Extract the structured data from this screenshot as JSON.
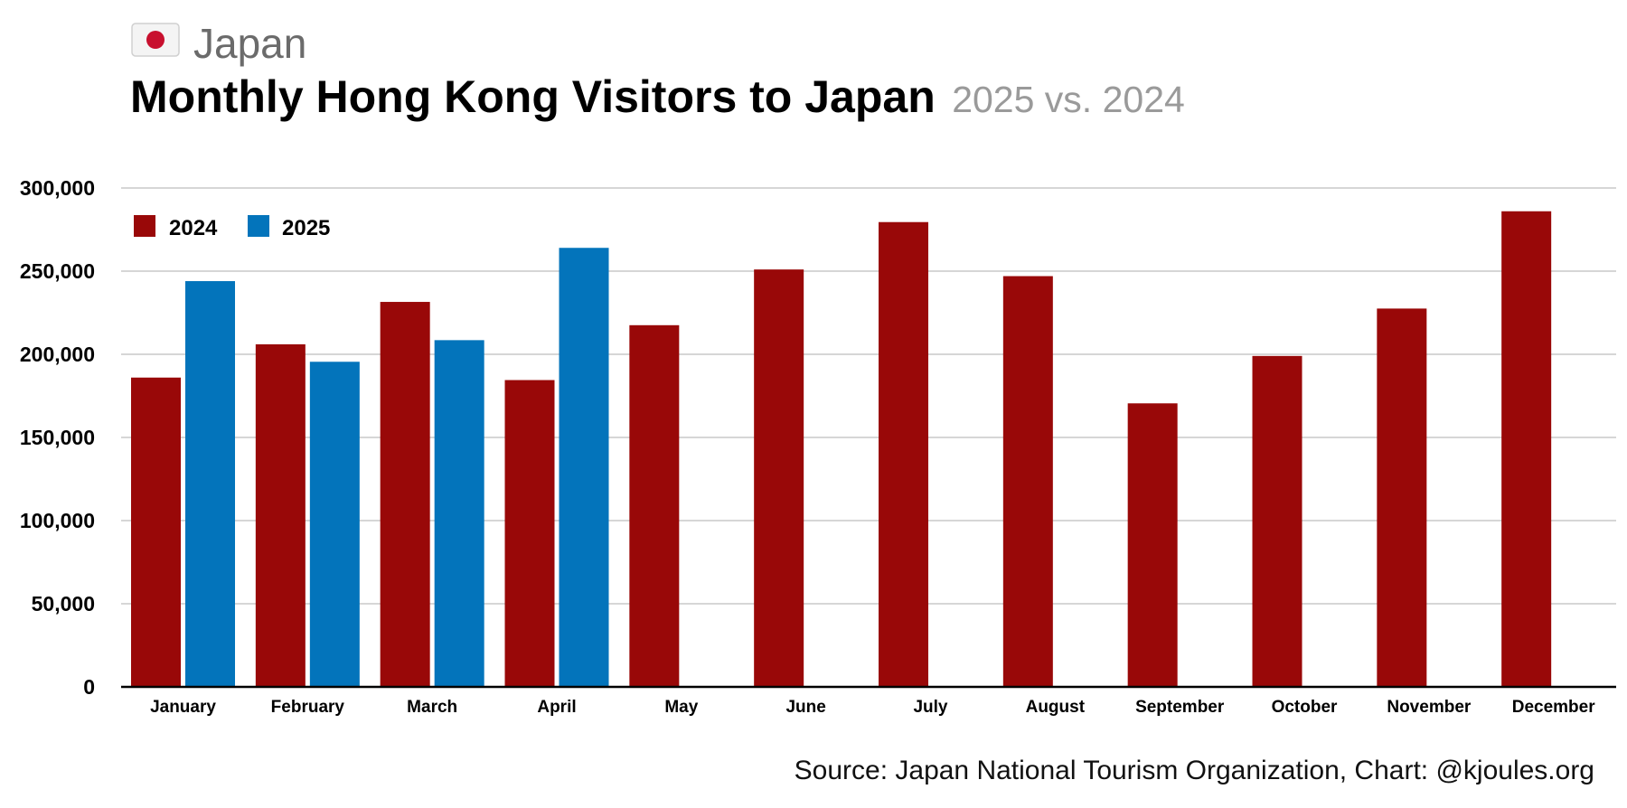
{
  "header": {
    "flag_icon": "japan-flag-icon",
    "country": "Japan",
    "title": "Monthly Hong Kong Visitors to Japan",
    "subtitle": "2025 vs. 2024"
  },
  "source": "Source: Japan National Tourism Organization, Chart: @kjoules.org",
  "colors": {
    "series_2024": "#990808",
    "series_2025": "#0374bb",
    "flag_red": "#c8102e"
  },
  "chart_data": {
    "type": "bar",
    "title": "Monthly Hong Kong Visitors to Japan",
    "subtitle": "2025 vs. 2024",
    "xlabel": "",
    "ylabel": "",
    "categories": [
      "January",
      "February",
      "March",
      "April",
      "May",
      "June",
      "July",
      "August",
      "September",
      "October",
      "November",
      "December"
    ],
    "series": [
      {
        "name": "2024",
        "color": "#990808",
        "values": [
          186000,
          206000,
          231500,
          184500,
          217500,
          251000,
          279500,
          247000,
          170500,
          199000,
          227500,
          286000
        ]
      },
      {
        "name": "2025",
        "color": "#0374bb",
        "values": [
          244000,
          195500,
          208500,
          264000,
          null,
          null,
          null,
          null,
          null,
          null,
          null,
          null
        ]
      }
    ],
    "y_ticks": [
      "0",
      "50,000",
      "100,000",
      "150,000",
      "200,000",
      "250,000",
      "300,000"
    ],
    "y_tick_values": [
      0,
      50000,
      100000,
      150000,
      200000,
      250000,
      300000
    ],
    "ylim": [
      0,
      300000
    ],
    "grid": true,
    "legend_position": "top-left"
  }
}
